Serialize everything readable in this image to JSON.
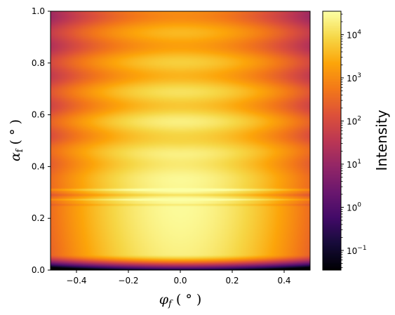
{
  "chart_data": {
    "type": "heatmap",
    "title": "",
    "xlabel": "φ_f ( ° )",
    "ylabel": "α_f ( ° )",
    "xlim": [
      -0.5,
      0.5
    ],
    "ylim": [
      0.0,
      1.0
    ],
    "x_ticks": [
      -0.4,
      -0.2,
      0.0,
      0.2,
      0.4
    ],
    "x_tick_labels": [
      "−0.4",
      "−0.2",
      "0.0",
      "0.2",
      "0.4"
    ],
    "y_ticks": [
      0.0,
      0.2,
      0.4,
      0.6,
      0.8,
      1.0
    ],
    "y_tick_labels": [
      "0.0",
      "0.2",
      "0.4",
      "0.6",
      "0.8",
      "1.0"
    ],
    "colorbar": {
      "label": "Intensity",
      "scale": "log",
      "colormap": "inferno",
      "range": [
        0.035,
        35000
      ],
      "ticks": [
        0.1,
        1,
        10,
        100,
        1000,
        10000
      ],
      "tick_labels": [
        {
          "base": "10",
          "exp": "−1"
        },
        {
          "base": "10",
          "exp": "0"
        },
        {
          "base": "10",
          "exp": "1"
        },
        {
          "base": "10",
          "exp": "2"
        },
        {
          "base": "10",
          "exp": "3"
        },
        {
          "base": "10",
          "exp": "4"
        }
      ]
    },
    "features": {
      "peak_intensity": 30000,
      "peak_alpha_f": 0.24,
      "bright_lines_alpha_f": [
        0.272,
        0.31
      ],
      "dark_band_alpha_f": 0.02
    }
  },
  "labels": {
    "x_main": "φ",
    "x_sub": "f",
    "x_unit": " ( ° )",
    "y_main": "α",
    "y_sub": "f",
    "y_unit": " ( ° )"
  }
}
